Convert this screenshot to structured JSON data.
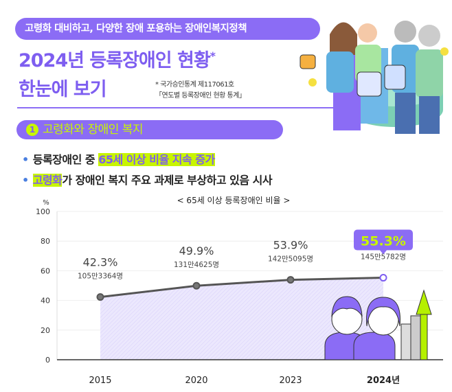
{
  "header": {
    "banner": "고령화 대비하고, 다양한 장애 포용하는 장애인복지정책",
    "title_line1": "2024년 등록장애인 현황",
    "title_asterisk": "*",
    "title_line2": "한눈에 보기",
    "note_line1": "* 국가승인통계 제117061호",
    "note_line2": "「연도별 등록장애인 현황 통계」"
  },
  "section": {
    "number": "1",
    "title": "고령화와 장애인 복지"
  },
  "bullets": [
    {
      "pre": "등록장애인 중 ",
      "highlight": "65세 이상 비율 지속 증가",
      "post": ""
    },
    {
      "pre": "",
      "highlight": "고령화",
      "post": "가 장애인 복지 주요 과제로 부상하고 있음 시사"
    }
  ],
  "colors": {
    "purple": "#8b6cf5",
    "lime": "#c8f500",
    "line": "#555555"
  },
  "chart_data": {
    "type": "line",
    "title": "< 65세 이상 등록장애인 비율 >",
    "ylabel": "%",
    "ylim": [
      0,
      100
    ],
    "yticks": [
      0,
      20,
      40,
      60,
      80,
      100
    ],
    "categories": [
      "2015",
      "2020",
      "2023",
      "2024년"
    ],
    "series": [
      {
        "name": "65세 이상 비율",
        "values": [
          42.3,
          49.9,
          53.9,
          55.3
        ],
        "labels": [
          "42.3%",
          "49.9%",
          "53.9%",
          "55.3%"
        ],
        "counts": [
          "105만3364명",
          "131만4625명",
          "142만5095명",
          "145만5782명"
        ]
      }
    ],
    "grid": true,
    "legend": "none"
  }
}
